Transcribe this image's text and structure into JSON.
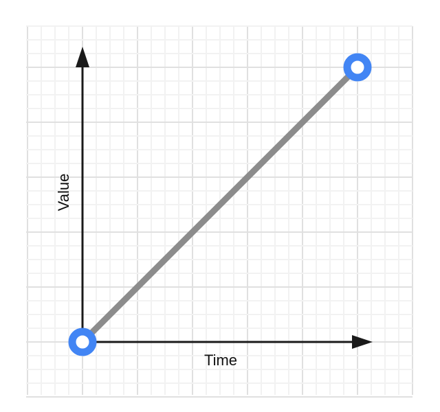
{
  "chart_data": {
    "type": "line",
    "title": "",
    "xlabel": "Time",
    "ylabel": "Value",
    "xlim": [
      0,
      5
    ],
    "ylim": [
      0,
      5
    ],
    "grid": true,
    "series": [
      {
        "x": [
          0,
          5
        ],
        "y": [
          0,
          5
        ],
        "color": "#8c8c8c"
      }
    ],
    "point_color": "#4285f4",
    "axis_color": "#1a1a1a"
  }
}
